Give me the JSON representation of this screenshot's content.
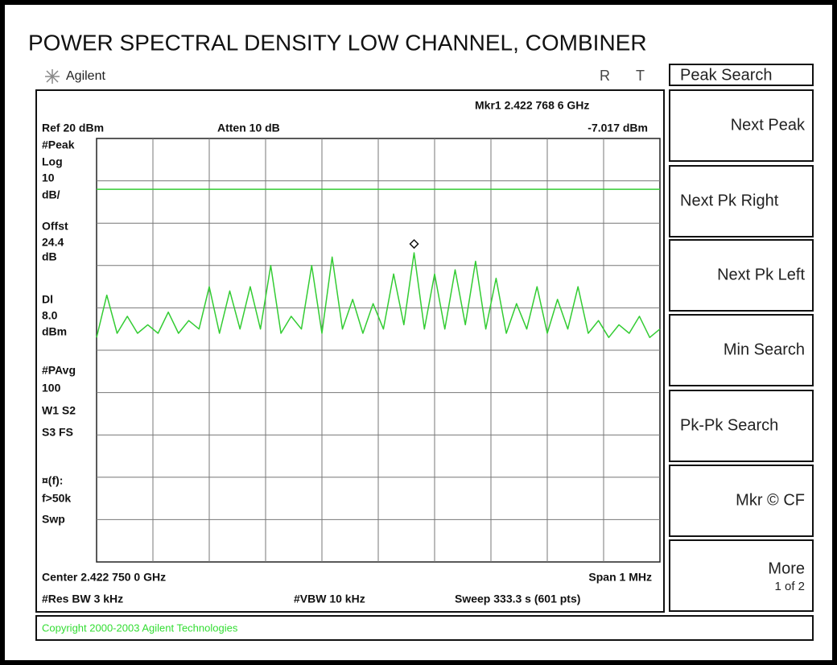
{
  "title": "POWER SPECTRAL DENSITY LOW CHANNEL, COMBINER",
  "header": {
    "brand": "Agilent",
    "indicators": [
      "R",
      "T"
    ]
  },
  "screen": {
    "marker": "Mkr1 2.422 768 6 GHz",
    "ref": "Ref 20 dBm",
    "atten": "Atten 10 dB",
    "marker_level": "-7.017 dBm",
    "side_labels": [
      "#Peak",
      "Log",
      "10",
      "dB/",
      "Offst",
      "24.4",
      "dB",
      "Dl",
      "8.0",
      "dBm",
      "#PAvg",
      "100",
      "W1  S2",
      "S3  FS",
      "¤(f):",
      "f>50k",
      "Swp"
    ],
    "center": "Center 2.422 750 0 GHz",
    "span": "Span 1 MHz",
    "res_bw": "#Res BW 3 kHz",
    "vbw": "#VBW 10 kHz",
    "sweep": "Sweep  333.3 s (601 pts)",
    "trace": {
      "ylim": [
        -80,
        20
      ],
      "display_line": 8.0,
      "color": "#33cc33",
      "values": [
        -27,
        -17,
        -26,
        -22,
        -26,
        -24,
        -26,
        -21,
        -26,
        -23,
        -25,
        -15,
        -26,
        -16,
        -25,
        -15,
        -25,
        -10,
        -26,
        -22,
        -25,
        -10,
        -26,
        -8,
        -25,
        -18,
        -26,
        -19,
        -25,
        -12,
        -24,
        -7,
        -25,
        -12,
        -25,
        -11,
        -24,
        -9,
        -25,
        -13,
        -26,
        -19,
        -25,
        -15,
        -26,
        -18,
        -25,
        -15,
        -26,
        -23,
        -27,
        -24,
        -26,
        -22,
        -27,
        -25
      ]
    }
  },
  "softkeys": {
    "title": "Peak Search",
    "keys": [
      {
        "label": "Next Peak"
      },
      {
        "label": "Next Pk Right"
      },
      {
        "label": "Next Pk Left"
      },
      {
        "label": "Min Search"
      },
      {
        "label": "Pk-Pk Search"
      },
      {
        "label": "Mkr © CF"
      },
      {
        "label": "More",
        "sub": "1 of 2"
      }
    ]
  },
  "footer": "Copyright 2000-2003 Agilent Technologies"
}
